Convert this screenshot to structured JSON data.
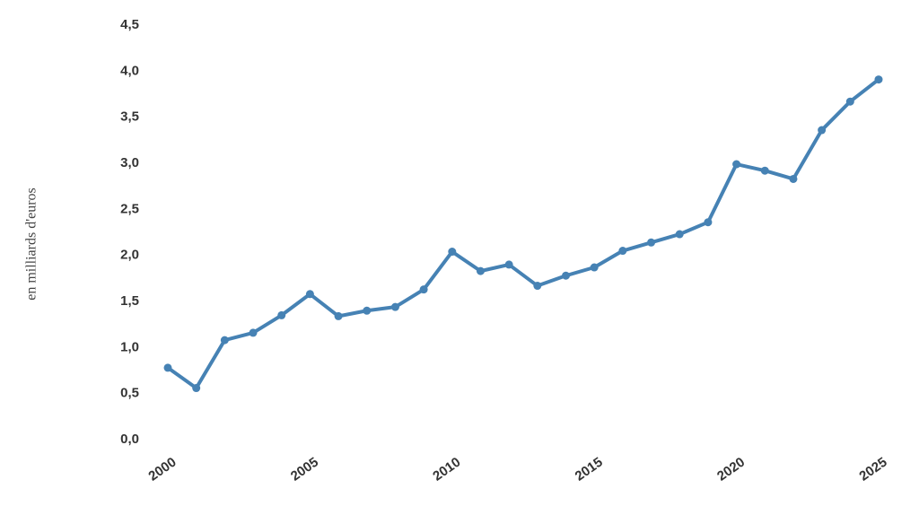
{
  "chart_data": {
    "type": "line",
    "ylabel": "en milliards d'euros",
    "x": [
      2000,
      2001,
      2002,
      2003,
      2004,
      2005,
      2006,
      2007,
      2008,
      2009,
      2010,
      2011,
      2012,
      2013,
      2014,
      2015,
      2016,
      2017,
      2018,
      2019,
      2020,
      2021,
      2022,
      2023,
      2024,
      2025
    ],
    "values": [
      0.78,
      0.56,
      1.08,
      1.16,
      1.35,
      1.58,
      1.34,
      1.4,
      1.44,
      1.63,
      2.04,
      1.83,
      1.9,
      1.67,
      1.78,
      1.87,
      2.05,
      2.14,
      2.23,
      2.36,
      2.99,
      2.92,
      2.83,
      3.36,
      3.67,
      3.91
    ],
    "color": "#4682b4",
    "xlim": [
      2000,
      2025
    ],
    "xticks": [
      2000,
      2005,
      2010,
      2015,
      2020,
      2025
    ],
    "ylim": [
      0,
      4.5
    ],
    "yticks": [
      {
        "value": 0,
        "label": "0,0"
      },
      {
        "value": 0.5,
        "label": "0,5"
      },
      {
        "value": 1,
        "label": "1,0"
      },
      {
        "value": 1.5,
        "label": "1,5"
      },
      {
        "value": 2,
        "label": "2,0"
      },
      {
        "value": 2.5,
        "label": "2,5"
      },
      {
        "value": 3,
        "label": "3,0"
      },
      {
        "value": 3.5,
        "label": "3,5"
      },
      {
        "value": 4,
        "label": "4,0"
      },
      {
        "value": 4.5,
        "label": "4,5"
      }
    ],
    "grid": false
  }
}
